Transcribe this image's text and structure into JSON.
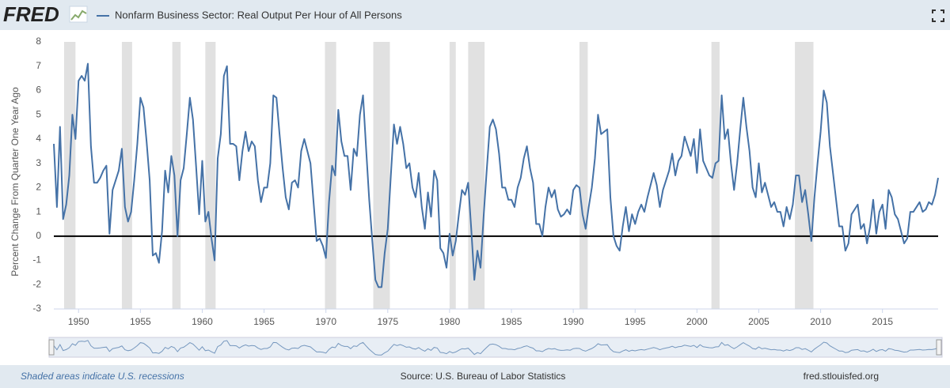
{
  "logo": "FRED",
  "chart_data": {
    "type": "line",
    "series": [
      {
        "name": "Nonfarm Business Sector: Real Output Per Hour of All Persons",
        "color": "#4572a7",
        "values": [
          3.8,
          1.2,
          4.5,
          0.7,
          1.3,
          2.5,
          5.0,
          4.0,
          6.4,
          6.6,
          6.4,
          7.1,
          3.7,
          2.2,
          2.2,
          2.4,
          2.7,
          2.9,
          0.1,
          1.9,
          2.3,
          2.7,
          3.6,
          1.2,
          0.6,
          1.0,
          2.3,
          3.8,
          5.7,
          5.3,
          3.9,
          2.3,
          -0.8,
          -0.7,
          -1.1,
          0.2,
          2.7,
          1.8,
          3.3,
          2.5,
          0.0,
          2.3,
          2.8,
          4.2,
          5.7,
          4.8,
          2.9,
          0.9,
          3.1,
          0.6,
          1.0,
          -0.1,
          -1.0,
          3.2,
          4.2,
          6.6,
          7.0,
          3.8,
          3.8,
          3.7,
          2.3,
          3.5,
          4.3,
          3.5,
          3.9,
          3.7,
          2.3,
          1.4,
          2.0,
          2.0,
          3.0,
          5.8,
          5.7,
          4.2,
          2.8,
          1.6,
          1.1,
          2.2,
          2.3,
          2.0,
          3.5,
          4.0,
          3.5,
          3.0,
          1.4,
          -0.2,
          -0.1,
          -0.4,
          -0.9,
          1.4,
          2.9,
          2.5,
          5.2,
          3.9,
          3.3,
          3.3,
          1.9,
          3.6,
          3.3,
          5.0,
          5.8,
          3.6,
          1.5,
          -0.2,
          -1.8,
          -2.1,
          -2.1,
          -0.7,
          0.3,
          2.5,
          4.6,
          3.8,
          4.5,
          3.8,
          2.8,
          3.0,
          2.0,
          1.6,
          2.6,
          1.2,
          0.3,
          1.8,
          0.8,
          2.7,
          2.3,
          -0.5,
          -0.7,
          -1.3,
          0.1,
          -0.8,
          -0.2,
          0.9,
          1.9,
          1.7,
          2.2,
          0.3,
          -1.8,
          -0.6,
          -1.3,
          0.8,
          2.7,
          4.5,
          4.8,
          4.4,
          3.4,
          2.0,
          2.0,
          1.5,
          1.5,
          1.2,
          2.0,
          2.4,
          3.2,
          3.7,
          2.8,
          2.2,
          0.5,
          0.5,
          0.0,
          1.2,
          2.0,
          1.6,
          1.9,
          1.1,
          0.8,
          0.9,
          1.1,
          0.9,
          1.9,
          2.1,
          2.0,
          0.9,
          0.3,
          1.2,
          2.0,
          3.2,
          5.0,
          4.2,
          4.3,
          4.4,
          1.6,
          0.0,
          -0.4,
          -0.6,
          0.4,
          1.2,
          0.2,
          0.9,
          0.5,
          1.0,
          1.3,
          1.0,
          1.6,
          2.1,
          2.6,
          2.1,
          1.2,
          1.9,
          2.3,
          2.7,
          3.4,
          2.5,
          3.1,
          3.3,
          4.1,
          3.7,
          3.3,
          4.0,
          2.6,
          4.4,
          3.1,
          2.8,
          2.5,
          2.4,
          3.0,
          3.1,
          5.8,
          4.0,
          4.4,
          3.0,
          1.9,
          3.0,
          4.4,
          5.7,
          4.5,
          3.5,
          2.0,
          1.6,
          3.0,
          1.8,
          2.2,
          1.7,
          1.2,
          1.4,
          1.0,
          1.0,
          0.4,
          1.2,
          0.7,
          1.3,
          2.5,
          2.5,
          1.4,
          1.9,
          0.9,
          -0.2,
          1.6,
          3.0,
          4.3,
          6.0,
          5.5,
          3.7,
          2.6,
          1.5,
          0.4,
          0.4,
          -0.6,
          -0.3,
          0.9,
          1.1,
          1.3,
          0.3,
          0.5,
          -0.3,
          0.4,
          1.5,
          0.1,
          1.0,
          1.3,
          0.3,
          1.9,
          1.6,
          0.9,
          0.7,
          0.2,
          -0.3,
          -0.1,
          1.0,
          1.0,
          1.2,
          1.4,
          1.0,
          1.1,
          1.4,
          1.3,
          1.7,
          2.4
        ]
      }
    ],
    "x": [
      1948,
      1948.25,
      1948.5,
      1948.75,
      1949,
      1949.25,
      1949.5,
      1949.75,
      1950,
      1950.25,
      1950.5,
      1950.75,
      1951,
      1951.25,
      1951.5,
      1951.75,
      1952,
      1952.25,
      1952.5,
      1952.75,
      1953,
      1953.25,
      1953.5,
      1953.75,
      1954,
      1954.25,
      1954.5,
      1954.75,
      1955,
      1955.25,
      1955.5,
      1955.75,
      1956,
      1956.25,
      1956.5,
      1956.75,
      1957,
      1957.25,
      1957.5,
      1957.75,
      1958,
      1958.25,
      1958.5,
      1958.75,
      1959,
      1959.25,
      1959.5,
      1959.75,
      1960,
      1960.25,
      1960.5,
      1960.75,
      1961,
      1961.25,
      1961.5,
      1961.75,
      1962,
      1962.25,
      1962.5,
      1962.75,
      1963,
      1963.25,
      1963.5,
      1963.75,
      1964,
      1964.25,
      1964.5,
      1964.75,
      1965,
      1965.25,
      1965.5,
      1965.75,
      1966,
      1966.25,
      1966.5,
      1966.75,
      1967,
      1967.25,
      1967.5,
      1967.75,
      1968,
      1968.25,
      1968.5,
      1968.75,
      1969,
      1969.25,
      1969.5,
      1969.75,
      1970,
      1970.25,
      1970.5,
      1970.75,
      1971,
      1971.25,
      1971.5,
      1971.75,
      1972,
      1972.25,
      1972.5,
      1972.75,
      1973,
      1973.25,
      1973.5,
      1973.75,
      1974,
      1974.25,
      1974.5,
      1974.75,
      1975,
      1975.25,
      1975.5,
      1975.75,
      1976,
      1976.25,
      1976.5,
      1976.75,
      1977,
      1977.25,
      1977.5,
      1977.75,
      1978,
      1978.25,
      1978.5,
      1978.75,
      1979,
      1979.25,
      1979.5,
      1979.75,
      1980,
      1980.25,
      1980.5,
      1980.75,
      1981,
      1981.25,
      1981.5,
      1981.75,
      1982,
      1982.25,
      1982.5,
      1982.75,
      1983,
      1983.25,
      1983.5,
      1983.75,
      1984,
      1984.25,
      1984.5,
      1984.75,
      1985,
      1985.25,
      1985.5,
      1985.75,
      1986,
      1986.25,
      1986.5,
      1986.75,
      1987,
      1987.25,
      1987.5,
      1987.75,
      1988,
      1988.25,
      1988.5,
      1988.75,
      1989,
      1989.25,
      1989.5,
      1989.75,
      1990,
      1990.25,
      1990.5,
      1990.75,
      1991,
      1991.25,
      1991.5,
      1991.75,
      1992,
      1992.25,
      1992.5,
      1992.75,
      1993,
      1993.25,
      1993.5,
      1993.75,
      1994,
      1994.25,
      1994.5,
      1994.75,
      1995,
      1995.25,
      1995.5,
      1995.75,
      1996,
      1996.25,
      1996.5,
      1996.75,
      1997,
      1997.25,
      1997.5,
      1997.75,
      1998,
      1998.25,
      1998.5,
      1998.75,
      1999,
      1999.25,
      1999.5,
      1999.75,
      2000,
      2000.25,
      2000.5,
      2000.75,
      2001,
      2001.25,
      2001.5,
      2001.75,
      2002,
      2002.25,
      2002.5,
      2002.75,
      2003,
      2003.25,
      2003.5,
      2003.75,
      2004,
      2004.25,
      2004.5,
      2004.75,
      2005,
      2005.25,
      2005.5,
      2005.75,
      2006,
      2006.25,
      2006.5,
      2006.75,
      2007,
      2007.25,
      2007.5,
      2007.75,
      2008,
      2008.25,
      2008.5,
      2008.75,
      2009,
      2009.25,
      2009.5,
      2009.75,
      2010,
      2010.25,
      2010.5,
      2010.75,
      2011,
      2011.25,
      2011.5,
      2011.75,
      2012,
      2012.25,
      2012.5,
      2012.75,
      2013,
      2013.25,
      2013.5,
      2013.75,
      2014,
      2014.25,
      2014.5,
      2014.75,
      2015,
      2015.25,
      2015.5,
      2015.75,
      2016,
      2016.25,
      2016.5,
      2016.75,
      2017,
      2017.25,
      2017.5,
      2017.75,
      2018,
      2018.25,
      2018.5,
      2018.75,
      2019,
      2019.25,
      2019.5
    ],
    "recessions": [
      [
        1948.83,
        1949.75
      ],
      [
        1953.5,
        1954.33
      ],
      [
        1957.58,
        1958.25
      ],
      [
        1960.25,
        1961.08
      ],
      [
        1969.92,
        1970.83
      ],
      [
        1973.83,
        1975.17
      ],
      [
        1980,
        1980.5
      ],
      [
        1981.5,
        1982.83
      ],
      [
        1990.5,
        1991.17
      ],
      [
        2001.17,
        2001.83
      ],
      [
        2007.92,
        2009.42
      ]
    ],
    "recession_color": "#e1e1e1",
    "xlim": [
      1948,
      2019.5
    ],
    "xticks": [
      1950,
      1955,
      1960,
      1965,
      1970,
      1975,
      1980,
      1985,
      1990,
      1995,
      2000,
      2005,
      2010,
      2015
    ],
    "ylim": [
      -3,
      8
    ],
    "yticks": [
      -3,
      -2,
      -1,
      0,
      1,
      2,
      3,
      4,
      5,
      6,
      7,
      8
    ],
    "zero_line": true,
    "y_label": "Percent Change From Quarter One Year Ago",
    "recession_note": "Shaded areas indicate U.S. recessions",
    "source": "Source: U.S. Bureau of Labor Statistics",
    "site": "fred.stlouisfed.org"
  }
}
